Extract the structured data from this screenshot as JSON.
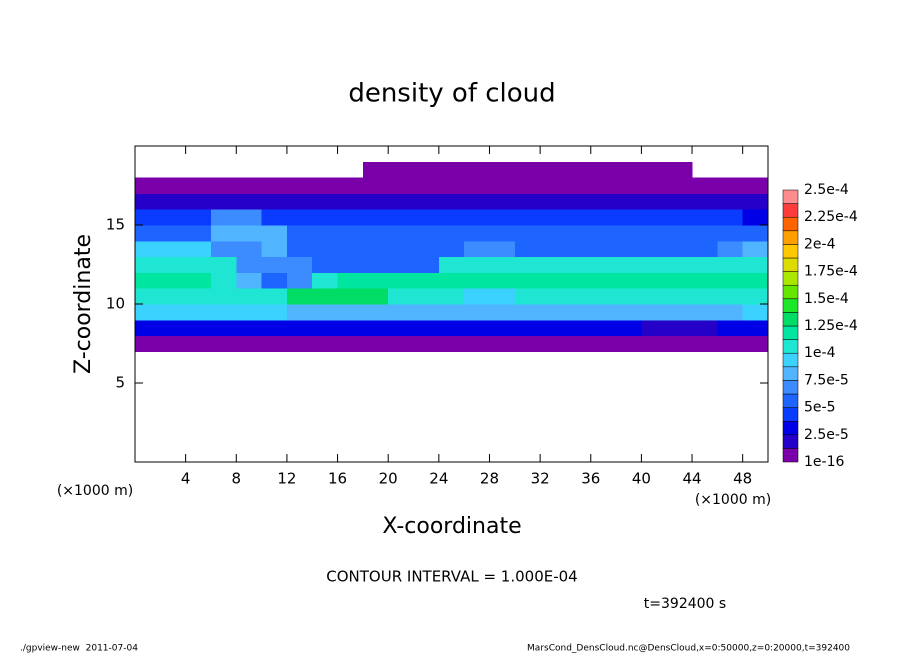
{
  "chart_data": {
    "type": "heatmap",
    "title": "density of cloud",
    "x_label": "X-coordinate",
    "y_label": "Z-coordinate",
    "x_unit": "(×1000 m)",
    "y_unit": "(×1000 m)",
    "xlim": [
      0,
      50
    ],
    "xticks": [
      4,
      8,
      12,
      16,
      20,
      24,
      28,
      32,
      36,
      40,
      44,
      48
    ],
    "ylim": [
      0,
      20
    ],
    "yticks": [
      5,
      10,
      15
    ],
    "x_edges": [
      0,
      2,
      4,
      6,
      8,
      10,
      12,
      14,
      16,
      18,
      20,
      22,
      24,
      26,
      28,
      30,
      32,
      34,
      36,
      38,
      40,
      42,
      44,
      46,
      48,
      50
    ],
    "z_edges": [
      7,
      8,
      9,
      10,
      11,
      12,
      13,
      14,
      15,
      16,
      17,
      18,
      19
    ],
    "values": [
      [
        1e-06,
        1e-06,
        1e-06,
        1e-06,
        1e-06,
        1e-06,
        1e-06,
        1e-06,
        1e-06,
        1e-06,
        1e-06,
        1e-06,
        1e-06,
        1e-06,
        1e-06,
        1e-06,
        1e-06,
        1e-06,
        1e-06,
        1e-06,
        1e-06,
        1e-06,
        1e-06,
        1e-06,
        1e-06
      ],
      [
        3e-05,
        3e-05,
        3e-05,
        3e-05,
        3e-05,
        3e-05,
        3e-05,
        3e-05,
        3e-05,
        3e-05,
        3e-05,
        3e-05,
        3e-05,
        3e-05,
        3e-05,
        3e-05,
        3e-05,
        3e-05,
        3e-05,
        3e-05,
        2e-05,
        2e-05,
        2e-05,
        3e-05,
        3e-05
      ],
      [
        9e-05,
        9e-05,
        9e-05,
        9e-05,
        9e-05,
        9e-05,
        8e-05,
        8e-05,
        8e-05,
        8e-05,
        8e-05,
        8e-05,
        8e-05,
        8e-05,
        8e-05,
        8e-05,
        8e-05,
        8e-05,
        8e-05,
        8e-05,
        8e-05,
        8e-05,
        8e-05,
        8e-05,
        9e-05
      ],
      [
        0.00011,
        0.00011,
        0.00011,
        0.00011,
        0.0001,
        0.0001,
        0.00013,
        0.00013,
        0.00013,
        0.00013,
        0.00011,
        0.00011,
        0.0001,
        9e-05,
        9e-05,
        0.0001,
        0.0001,
        0.00011,
        0.00011,
        0.00011,
        0.00011,
        0.00011,
        0.00011,
        0.0001,
        0.00011
      ],
      [
        0.00012,
        0.00012,
        0.00012,
        0.0001,
        8e-05,
        5e-05,
        7e-05,
        0.00011,
        0.00012,
        0.00012,
        0.00012,
        0.00012,
        0.00012,
        0.00012,
        0.00012,
        0.00012,
        0.00012,
        0.00012,
        0.00012,
        0.00012,
        0.00012,
        0.00012,
        0.00012,
        0.00012,
        0.00012
      ],
      [
        0.00011,
        0.00011,
        0.00011,
        0.00011,
        7e-05,
        7e-05,
        7e-05,
        6e-05,
        6e-05,
        6e-05,
        6e-05,
        6e-05,
        0.00011,
        0.00011,
        0.00011,
        0.00011,
        0.00011,
        0.00011,
        0.00011,
        0.00011,
        0.00011,
        0.00011,
        0.00011,
        0.00011,
        0.00011
      ],
      [
        9e-05,
        9e-05,
        9e-05,
        7e-05,
        7e-05,
        8e-05,
        6e-05,
        6e-05,
        6e-05,
        6e-05,
        6e-05,
        6e-05,
        6e-05,
        7e-05,
        7e-05,
        6e-05,
        6e-05,
        6e-05,
        6e-05,
        6e-05,
        6e-05,
        6e-05,
        6e-05,
        7e-05,
        8e-05
      ],
      [
        6e-05,
        6e-05,
        6e-05,
        8e-05,
        8e-05,
        8e-05,
        5e-05,
        5e-05,
        5e-05,
        5e-05,
        5e-05,
        5e-05,
        5e-05,
        5e-05,
        5e-05,
        5e-05,
        5e-05,
        5e-05,
        5e-05,
        5e-05,
        5e-05,
        5e-05,
        5e-05,
        5e-05,
        5e-05
      ],
      [
        4e-05,
        4e-05,
        4e-05,
        7e-05,
        7e-05,
        4e-05,
        4e-05,
        4e-05,
        4e-05,
        4e-05,
        4e-05,
        4e-05,
        4e-05,
        4e-05,
        4e-05,
        4e-05,
        4e-05,
        4e-05,
        4e-05,
        4e-05,
        4e-05,
        4e-05,
        4e-05,
        4e-05,
        3e-05
      ],
      [
        2e-05,
        2e-05,
        2e-05,
        2e-05,
        2e-05,
        2e-05,
        2e-05,
        2e-05,
        2e-05,
        2e-05,
        2e-05,
        2e-05,
        2e-05,
        2e-05,
        2e-05,
        2e-05,
        2e-05,
        2e-05,
        2e-05,
        2e-05,
        2e-05,
        2e-05,
        2e-05,
        2e-05,
        2e-05
      ],
      [
        1e-06,
        1e-06,
        1e-06,
        1e-06,
        1e-06,
        1e-06,
        1e-06,
        1e-06,
        1e-06,
        1e-06,
        1e-06,
        1e-06,
        1e-06,
        1e-06,
        1e-06,
        1e-06,
        1e-06,
        1e-06,
        1e-06,
        1e-06,
        1e-06,
        1e-06,
        1e-06,
        1e-06,
        1e-06
      ],
      [
        0,
        0,
        0,
        0,
        0,
        0,
        0,
        0,
        0,
        1e-06,
        1e-06,
        1e-06,
        1e-06,
        1e-06,
        1e-06,
        1e-06,
        1e-06,
        1e-06,
        1e-06,
        1e-06,
        1e-06,
        1e-06,
        0,
        0,
        0
      ]
    ],
    "colorbar_ticks": [
      1e-16,
      {
        "value": 2.5e-05,
        "label": "2.5e-5"
      },
      {
        "value": 5e-05,
        "label": "5e-5"
      },
      {
        "value": 7.5e-05,
        "label": "7.5e-5"
      },
      {
        "value": 0.0001,
        "label": "1e-4"
      },
      {
        "value": 0.000125,
        "label": "1.25e-4"
      },
      {
        "value": 0.00015,
        "label": "1.5e-4"
      },
      {
        "value": 0.000175,
        "label": "1.75e-4"
      },
      {
        "value": 0.0002,
        "label": "2e-4"
      },
      {
        "value": 0.000225,
        "label": "2.25e-4"
      },
      {
        "value": 0.00025,
        "label": "2.5e-4"
      }
    ],
    "colors": [
      "#7a00aa",
      "#2400c8",
      "#0000e6",
      "#0a3cff",
      "#1e64ff",
      "#3c8cff",
      "#50b4ff",
      "#3cd2ff",
      "#1ee6d2",
      "#00e6a0",
      "#00dc64",
      "#1ee628",
      "#64e600",
      "#aae600",
      "#dcdc00",
      "#ffc800",
      "#ffa000",
      "#ff6400",
      "#ff3c3c",
      "#ff8c8c"
    ],
    "contour_note": "CONTOUR INTERVAL = 1.000E-04",
    "time_note": "t=392400 s"
  },
  "footer": {
    "left": "./gpview-new  2011-07-04",
    "right": "MarsCond_DensCloud.nc@DensCloud,x=0:50000,z=0:20000,t=392400"
  }
}
